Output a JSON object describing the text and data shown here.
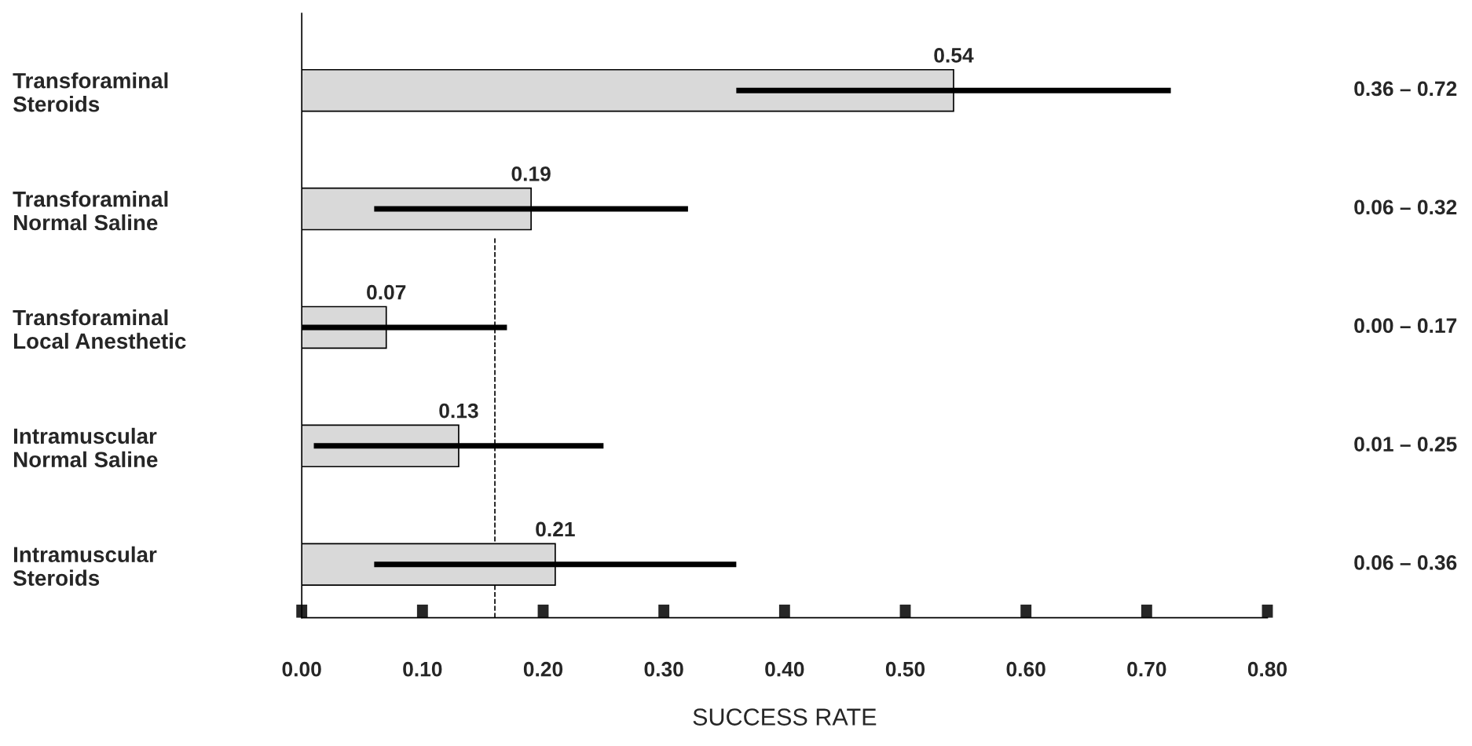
{
  "chart_data": {
    "type": "bar",
    "orientation": "horizontal",
    "xlabel": "SUCCESS RATE",
    "categories": [
      "Transforaminal\nSteroids",
      "Transforaminal\nNormal Saline",
      "Transforaminal\nLocal Anesthetic",
      "Intramuscular\nNormal Saline",
      "Intramuscular\nSteroids"
    ],
    "values": [
      0.54,
      0.19,
      0.07,
      0.13,
      0.21
    ],
    "errors": [
      [
        0.36,
        0.72
      ],
      [
        0.06,
        0.32
      ],
      [
        0.0,
        0.17
      ],
      [
        0.01,
        0.25
      ],
      [
        0.06,
        0.36
      ]
    ],
    "color": "#d9d9d9",
    "value_labels": [
      "0.54",
      "0.19",
      "0.07",
      "0.13",
      "0.21"
    ],
    "xlim": [
      0,
      0.8
    ],
    "xticks": [
      {
        "value": 0,
        "label": "0.00"
      },
      {
        "value": 0.1,
        "label": "0.10"
      },
      {
        "value": 0.2,
        "label": "0.20"
      },
      {
        "value": 0.3,
        "label": "0.30"
      },
      {
        "value": 0.4,
        "label": "0.40"
      },
      {
        "value": 0.5,
        "label": "0.50"
      },
      {
        "value": 0.6,
        "label": "0.60"
      },
      {
        "value": 0.7,
        "label": "0.70"
      },
      {
        "value": 0.8,
        "label": "0.80"
      }
    ],
    "ref_lines": [
      {
        "axis": "x",
        "value": 0.16,
        "line_style": "dashed"
      }
    ],
    "annotations": [
      "0.36 – 0.72",
      "0.06 – 0.32",
      "0.00 – 0.17",
      "0.01 – 0.25",
      "0.06 – 0.36"
    ],
    "grid": false,
    "legend": false
  }
}
